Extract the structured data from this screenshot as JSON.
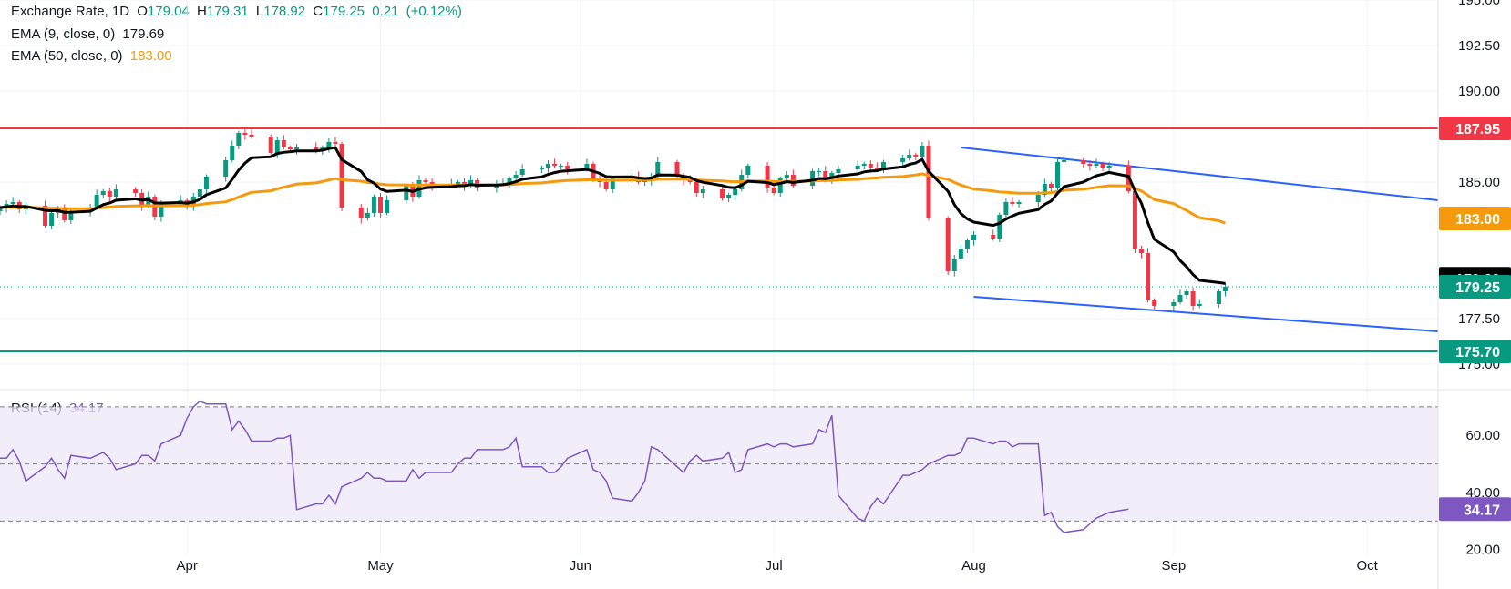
{
  "legend": {
    "symbol": "Exchange Rate, 1D",
    "open_label": "O",
    "open": "179.04",
    "high_label": "H",
    "high": "179.31",
    "low_label": "L",
    "low": "178.92",
    "close_label": "C",
    "close": "179.25",
    "change": "0.21",
    "change_pct": "(+0.12%)",
    "ema9_label": "EMA (9, close, 0)",
    "ema9_value": "179.69",
    "ema50_label": "EMA (50, close, 0)",
    "ema50_value": "183.00",
    "rsi_label": "RSI (14)",
    "rsi_value": "34.17"
  },
  "colors": {
    "up": "#089981",
    "down": "#f23645",
    "ema9": "#000000",
    "ema50": "#f59a0c",
    "channel": "#2962ff",
    "resistance": "#f23645",
    "support": "#089981",
    "rsi": "#7e57c2",
    "rsi_band": "#ede7f6"
  },
  "chart_data": [
    {
      "type": "candlestick",
      "title": "Exchange Rate, 1D",
      "ylim": [
        173.6,
        195.0
      ],
      "y_ticks": [
        "195.00",
        "192.50",
        "190.00",
        "185.00",
        "177.50",
        "175.00"
      ],
      "x_ticks": [
        {
          "label": "Apr",
          "date": "2025-04-01"
        },
        {
          "label": "May",
          "date": "2025-05-01"
        },
        {
          "label": "Jun",
          "date": "2025-06-01"
        },
        {
          "label": "Jul",
          "date": "2025-07-01"
        },
        {
          "label": "Aug",
          "date": "2025-08-01"
        },
        {
          "label": "Sep",
          "date": "2025-09-01"
        },
        {
          "label": "Oct",
          "date": "2025-10-01"
        }
      ],
      "xlim": [
        "2025-03-03",
        "2025-10-12"
      ],
      "close_series": [
        183.6,
        183.8,
        183.9,
        183.5,
        183.7,
        182.6,
        183.3,
        183.5,
        182.9,
        183.4,
        183.6,
        184.3,
        184.5,
        184.2,
        184.6,
        184.4,
        183.7,
        184.2,
        183.1,
        183.8,
        184.0,
        183.7,
        184.2,
        184.6,
        185.3,
        186.2,
        187.0,
        187.7,
        187.6,
        187.5,
        186.6,
        187.3,
        186.9,
        186.8,
        186.9,
        186.7,
        186.9,
        187.2,
        187.1,
        183.6,
        183.0,
        183.3,
        184.2,
        183.3,
        184.0,
        184.8,
        184.2,
        185.1,
        185.0,
        184.8,
        184.9,
        185.0,
        184.8,
        185.1,
        184.7,
        184.9,
        184.9,
        185.2,
        185.4,
        185.7,
        185.8,
        186.0,
        185.9,
        185.9,
        185.7,
        186.0,
        185.2,
        185.0,
        184.6,
        185.2,
        185.3,
        185.0,
        185.1,
        185.3,
        186.1,
        185.3,
        185.1,
        185.0,
        184.4,
        184.6,
        184.1,
        184.3,
        184.6,
        185.4,
        185.9,
        184.7,
        184.4,
        185.2,
        185.4,
        184.8,
        185.6,
        185.6,
        185.1,
        185.5,
        185.7,
        185.9,
        186.0,
        185.8,
        185.7,
        186.1,
        186.3,
        186.5,
        186.4,
        187.0,
        183.0,
        180.1,
        180.8,
        181.3,
        181.8,
        182.1,
        181.9,
        183.2,
        183.9,
        183.8,
        183.9,
        184.3,
        184.9,
        184.7,
        186.1,
        186.2,
        186.0,
        185.9,
        186.0,
        185.8,
        185.9,
        184.5,
        181.3,
        181.1,
        178.5,
        178.2,
        178.4,
        178.8,
        179.0,
        178.2,
        178.3,
        179.0,
        179.25
      ],
      "ema9_last": 179.69,
      "ema50_last": 183.0,
      "resistance": 187.95,
      "support": 175.7,
      "channel_upper": [
        {
          "date": "2025-07-30",
          "y": 186.9
        },
        {
          "date": "2025-10-12",
          "y": 184.0
        }
      ],
      "channel_lower": [
        {
          "date": "2025-08-01",
          "y": 178.7
        },
        {
          "date": "2025-10-12",
          "y": 176.8
        }
      ],
      "price_tags": [
        {
          "label": "187.95",
          "value": 187.95,
          "color": "#f23645"
        },
        {
          "label": "183.00",
          "value": 183.0,
          "color": "#f59a0c"
        },
        {
          "label": "179.69",
          "value": 179.69,
          "color": "#000000"
        },
        {
          "label": "179.25",
          "value": 179.25,
          "color": "#089981"
        },
        {
          "label": "175.70",
          "value": 175.7,
          "color": "#089981"
        }
      ]
    },
    {
      "type": "line",
      "title": "RSI (14)",
      "ylim": [
        18,
        76
      ],
      "y_ticks": [
        "60.00",
        "40.00",
        "20.00"
      ],
      "band": [
        30,
        70
      ],
      "midline": 50,
      "values": [
        52,
        52,
        55,
        51,
        44,
        49,
        52,
        48,
        45,
        53,
        52,
        53,
        54,
        52,
        48,
        50,
        53,
        53,
        51,
        57,
        60,
        66,
        70,
        72,
        71,
        71,
        62,
        65,
        62,
        58,
        58,
        59,
        59,
        60,
        34,
        36,
        36,
        39,
        36,
        42,
        45,
        47,
        45,
        45,
        44,
        44,
        48,
        45,
        47,
        47,
        47,
        50,
        52,
        52,
        55,
        55,
        55,
        56,
        59,
        49,
        49,
        47,
        47,
        49,
        52,
        55,
        48,
        47,
        44,
        38,
        37,
        40,
        44,
        56,
        55,
        49,
        47,
        51,
        53,
        51,
        52,
        54,
        47,
        48,
        55,
        57,
        56,
        57,
        57,
        56,
        57,
        62,
        61,
        67,
        39,
        31,
        30,
        35,
        38,
        36,
        46,
        46,
        47,
        48,
        50,
        53,
        53,
        54,
        59,
        59,
        57,
        58,
        58,
        56,
        57,
        57,
        32,
        33,
        28,
        26,
        27,
        29,
        31,
        32,
        33,
        34.17
      ],
      "last_value": 34.17
    }
  ]
}
